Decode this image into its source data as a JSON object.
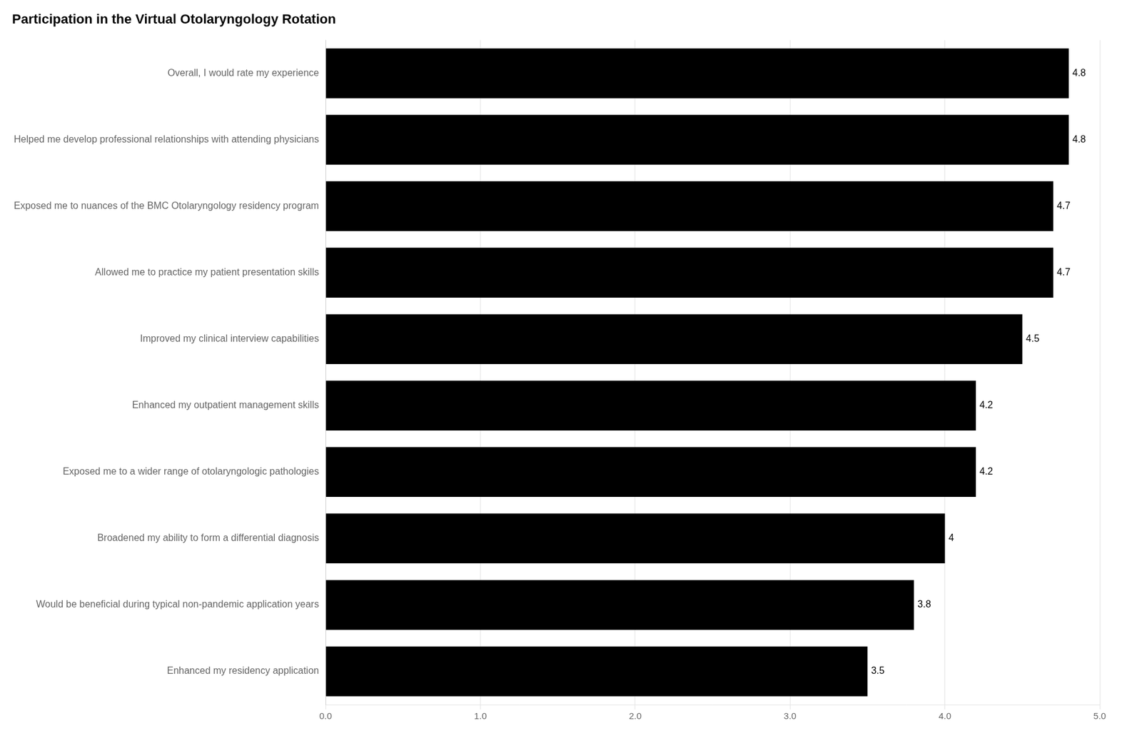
{
  "chart_data": {
    "type": "bar",
    "orientation": "horizontal",
    "title": "Participation in the Virtual Otolaryngology Rotation",
    "categories": [
      "Overall, I would rate my experience",
      "Helped me develop professional relationships with attending physicians",
      "Exposed me to nuances of the BMC Otolaryngology residency program",
      "Allowed me to practice my patient presentation skills",
      "Improved my clinical interview capabilities",
      "Enhanced my outpatient management skills",
      "Exposed me to a wider range of otolaryngologic pathologies",
      "Broadened my ability to form a differential diagnosis",
      "Would be beneficial during typical non-pandemic application years",
      "Enhanced my residency application"
    ],
    "values": [
      4.8,
      4.8,
      4.7,
      4.7,
      4.5,
      4.2,
      4.2,
      4.0,
      3.8,
      3.5
    ],
    "color": "#000000",
    "xlim": [
      0,
      5.0
    ],
    "xticks": [
      {
        "value": 0,
        "label": "0.0"
      },
      {
        "value": 1,
        "label": "1.0"
      },
      {
        "value": 2,
        "label": "2.0"
      },
      {
        "value": 3,
        "label": "3.0"
      },
      {
        "value": 4,
        "label": "4.0"
      },
      {
        "value": 5,
        "label": "5.0"
      }
    ],
    "grid": true,
    "data_labels": true
  }
}
